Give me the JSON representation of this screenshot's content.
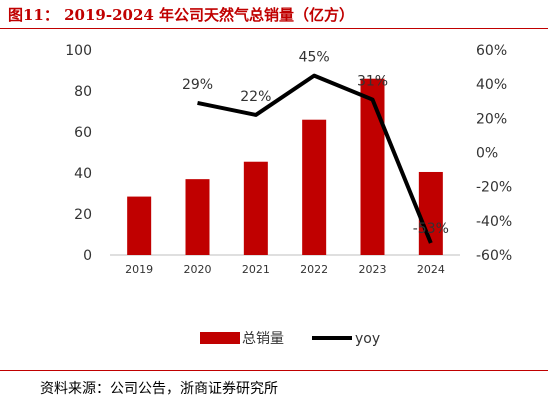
{
  "header": {
    "title": "图11：  2019-2024 年公司天然气总销量（亿方）"
  },
  "footer": {
    "source": "资料来源：公司公告，浙商证券研究所"
  },
  "colors": {
    "bar": "#c00000",
    "line": "#000000",
    "rule": "#c00000"
  },
  "chart_data": {
    "type": "bar",
    "categories": [
      "2019",
      "2020",
      "2021",
      "2022",
      "2023",
      "2024"
    ],
    "series": [
      {
        "name": "总销量",
        "type": "bar",
        "axis": "left",
        "values": [
          28.5,
          37,
          45.5,
          66,
          86,
          40.5
        ]
      },
      {
        "name": "yoy",
        "type": "line",
        "axis": "right",
        "values": [
          29,
          22,
          45,
          31,
          -53
        ],
        "x": [
          "2020",
          "2021",
          "2022",
          "2023",
          "2024"
        ],
        "labels": [
          "29%",
          "22%",
          "45%",
          "31%",
          "-53%"
        ]
      }
    ],
    "ylim_left": [
      0,
      100
    ],
    "yticks_left": [
      "0",
      "20",
      "40",
      "60",
      "80",
      "100"
    ],
    "ylim_right": [
      -60,
      60
    ],
    "yticks_right": [
      "-60%",
      "-40%",
      "-20%",
      "0%",
      "20%",
      "40%",
      "60%"
    ],
    "grid": false,
    "legend_position": "bottom"
  }
}
